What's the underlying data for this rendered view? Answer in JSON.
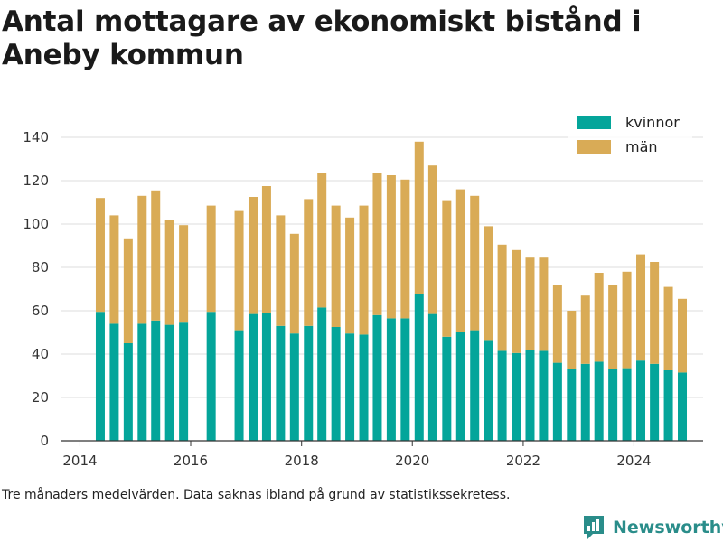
{
  "title": "Antal mottagare av ekonomiskt bistånd i Aneby kommun",
  "caption": "Tre månaders medelvärden. Data saknas ibland på grund av statistikssekretess.",
  "brand": {
    "name": "Newsworthy",
    "color": "#2a8d8a"
  },
  "colors": {
    "kvinnor": "#04a59a",
    "man": "#d9ab56",
    "grid": "#dddddd",
    "axis": "#333333"
  },
  "chart_data": {
    "type": "bar",
    "stacked": true,
    "title": "Antal mottagare av ekonomiskt bistånd i Aneby kommun",
    "xlabel": "",
    "ylabel": "",
    "ylim": [
      0,
      145
    ],
    "yticks": [
      0,
      20,
      40,
      60,
      80,
      100,
      120,
      140
    ],
    "xticks": [
      "2014",
      "2016",
      "2018",
      "2020",
      "2022",
      "2024"
    ],
    "xlim": [
      "2013-09-01",
      "2025-04-01"
    ],
    "grid": true,
    "legend_position": "top-right",
    "x": [
      "2014-05",
      "2014-08",
      "2014-11",
      "2015-02",
      "2015-05",
      "2015-08",
      "2015-11",
      "2016-05",
      "2016-11",
      "2017-02",
      "2017-05",
      "2017-08",
      "2017-11",
      "2018-02",
      "2018-05",
      "2018-08",
      "2018-11",
      "2019-02",
      "2019-05",
      "2019-08",
      "2019-11",
      "2020-02",
      "2020-05",
      "2020-08",
      "2020-11",
      "2021-02",
      "2021-05",
      "2021-08",
      "2021-11",
      "2022-02",
      "2022-05",
      "2022-08",
      "2022-11",
      "2023-02",
      "2023-05",
      "2023-08",
      "2023-11",
      "2024-02",
      "2024-05",
      "2024-08",
      "2024-11"
    ],
    "series": [
      {
        "name": "kvinnor",
        "color": "#04a59a",
        "values": [
          59.5,
          54,
          45,
          54,
          55.5,
          53.5,
          54.5,
          59.5,
          51,
          58.5,
          59,
          53,
          49.5,
          53,
          61.5,
          52.5,
          49.5,
          49,
          58,
          56.5,
          56.5,
          67.5,
          58.5,
          48,
          50,
          51,
          46.5,
          41.5,
          40.5,
          42,
          41.5,
          36,
          33,
          35.5,
          36.5,
          33,
          33.5,
          37,
          35.5,
          32.5,
          31.5
        ]
      },
      {
        "name": "män",
        "color": "#d9ab56",
        "values": [
          52.5,
          50,
          48,
          59,
          60,
          48.5,
          45,
          49,
          55,
          54,
          58.5,
          51,
          46,
          58.5,
          62,
          56,
          53.5,
          59.5,
          65.5,
          66,
          64,
          70.5,
          68.5,
          63,
          66,
          62,
          52.5,
          49,
          47.5,
          42.5,
          43,
          36,
          27,
          31.5,
          41,
          39,
          44.5,
          49,
          47,
          38.5,
          34
        ]
      }
    ]
  }
}
